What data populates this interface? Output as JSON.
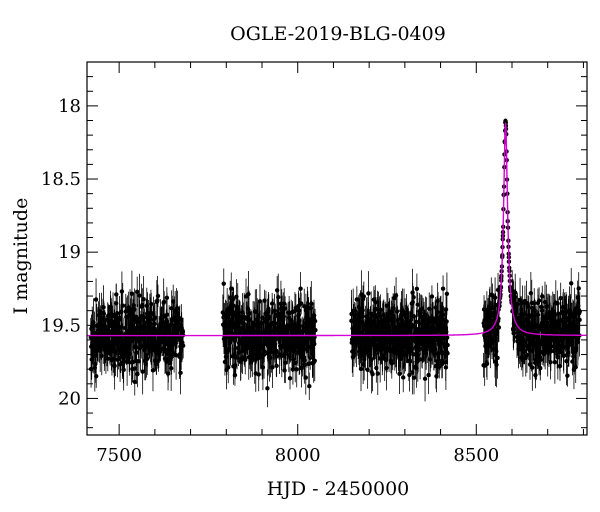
{
  "chart_data": {
    "type": "scatter",
    "title": "OGLE-2019-BLG-0409",
    "xlabel": "HJD - 2450000",
    "ylabel": "I magnitude",
    "xlim": [
      7410,
      8810
    ],
    "ylim": [
      20.25,
      17.7
    ],
    "y_axis_inverted": true,
    "grid": false,
    "x_ticks": [
      7500,
      8000,
      8500
    ],
    "x_tick_labels": [
      "7500",
      "8000",
      "8500"
    ],
    "y_ticks": [
      18,
      18.5,
      19,
      19.5,
      20
    ],
    "y_tick_labels": [
      "18",
      "18.5",
      "19",
      "19.5",
      "20"
    ],
    "observing_seasons_hjd": [
      [
        7420,
        7680
      ],
      [
        7790,
        8050
      ],
      [
        8150,
        8420
      ],
      [
        8520,
        8790
      ]
    ],
    "baseline_magnitude": 19.57,
    "baseline_scatter_mag": 0.12,
    "typical_error_mag": 0.12,
    "event": {
      "t0_hjd": 8582,
      "peak_magnitude": 18.12,
      "tE_days": 5
    },
    "series": [
      {
        "style": "black points with error bars",
        "sampling_days": 0.6,
        "values": "dense photometry around baseline 19.57 mag, brightening to 18.12 mag near HJD 8582"
      },
      {
        "style": "magenta model curve"
      }
    ],
    "colors": {
      "data": "#000000",
      "model": "#d400d4"
    }
  }
}
